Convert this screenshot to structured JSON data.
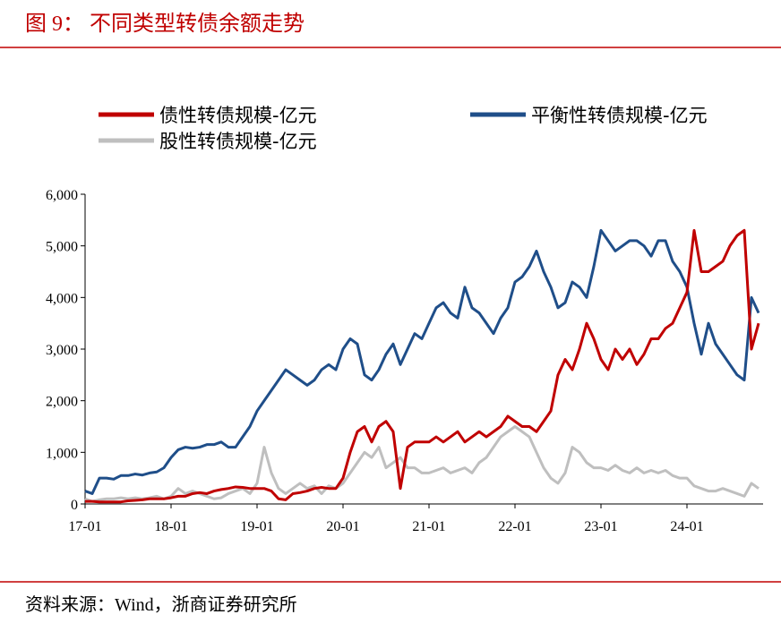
{
  "header": {
    "title": "图 9：   不同类型转债余额走势"
  },
  "chart_data": {
    "type": "line",
    "x": [
      "17-01",
      "17-02",
      "17-03",
      "17-04",
      "17-05",
      "17-06",
      "17-07",
      "17-08",
      "17-09",
      "17-10",
      "17-11",
      "17-12",
      "18-01",
      "18-02",
      "18-03",
      "18-04",
      "18-05",
      "18-06",
      "18-07",
      "18-08",
      "18-09",
      "18-10",
      "18-11",
      "18-12",
      "19-01",
      "19-02",
      "19-03",
      "19-04",
      "19-05",
      "19-06",
      "19-07",
      "19-08",
      "19-09",
      "19-10",
      "19-11",
      "19-12",
      "20-01",
      "20-02",
      "20-03",
      "20-04",
      "20-05",
      "20-06",
      "20-07",
      "20-08",
      "20-09",
      "20-10",
      "20-11",
      "20-12",
      "21-01",
      "21-02",
      "21-03",
      "21-04",
      "21-05",
      "21-06",
      "21-07",
      "21-08",
      "21-09",
      "21-10",
      "21-11",
      "21-12",
      "22-01",
      "22-02",
      "22-03",
      "22-04",
      "22-05",
      "22-06",
      "22-07",
      "22-08",
      "22-09",
      "22-10",
      "22-11",
      "22-12",
      "23-01",
      "23-02",
      "23-03",
      "23-04",
      "23-05",
      "23-06",
      "23-07",
      "23-08",
      "23-09",
      "23-10",
      "23-11",
      "23-12",
      "24-01",
      "24-02",
      "24-03",
      "24-04",
      "24-05",
      "24-06",
      "24-07",
      "24-08",
      "24-09",
      "24-10",
      "24-11"
    ],
    "xticks": [
      "17-01",
      "18-01",
      "19-01",
      "20-01",
      "21-01",
      "22-01",
      "23-01",
      "24-01"
    ],
    "series": [
      {
        "name": "债性转债规模-亿元",
        "color": "#c00000",
        "values": [
          50,
          50,
          40,
          40,
          40,
          40,
          60,
          70,
          80,
          100,
          100,
          100,
          120,
          150,
          150,
          200,
          220,
          200,
          250,
          280,
          300,
          330,
          320,
          300,
          300,
          300,
          250,
          100,
          80,
          200,
          220,
          250,
          300,
          320,
          300,
          300,
          500,
          1000,
          1400,
          1500,
          1200,
          1500,
          1600,
          1400,
          300,
          1100,
          1200,
          1200,
          1200,
          1300,
          1200,
          1300,
          1400,
          1200,
          1300,
          1400,
          1300,
          1400,
          1500,
          1700,
          1600,
          1500,
          1500,
          1400,
          1600,
          1800,
          2500,
          2800,
          2600,
          3000,
          3500,
          3200,
          2800,
          2600,
          3000,
          2800,
          3000,
          2700,
          2900,
          3200,
          3200,
          3400,
          3500,
          3800,
          4100,
          5300,
          4500,
          4500,
          4600,
          4700,
          5000,
          5200,
          5300,
          3000,
          3500
        ]
      },
      {
        "name": "平衡性转债规模-亿元",
        "color": "#1f4e89",
        "values": [
          250,
          200,
          500,
          500,
          480,
          550,
          550,
          580,
          560,
          600,
          620,
          700,
          900,
          1050,
          1100,
          1080,
          1100,
          1150,
          1150,
          1200,
          1100,
          1100,
          1300,
          1500,
          1800,
          2000,
          2200,
          2400,
          2600,
          2500,
          2400,
          2300,
          2400,
          2600,
          2700,
          2600,
          3000,
          3200,
          3100,
          2500,
          2400,
          2600,
          2900,
          3100,
          2700,
          3000,
          3300,
          3200,
          3500,
          3800,
          3900,
          3700,
          3600,
          4200,
          3800,
          3700,
          3500,
          3300,
          3600,
          3800,
          4300,
          4400,
          4600,
          4900,
          4500,
          4200,
          3800,
          3900,
          4300,
          4200,
          4000,
          4600,
          5300,
          5100,
          4900,
          5000,
          5100,
          5100,
          5000,
          4800,
          5100,
          5100,
          4700,
          4500,
          4200,
          3500,
          2900,
          3500,
          3100,
          2900,
          2700,
          2500,
          2400,
          4000,
          3700
        ]
      },
      {
        "name": "股性转债规模-亿元",
        "color": "#bfbfbf",
        "values": [
          100,
          50,
          80,
          100,
          100,
          120,
          100,
          120,
          100,
          120,
          150,
          100,
          150,
          300,
          200,
          250,
          200,
          150,
          100,
          120,
          200,
          250,
          300,
          200,
          400,
          1100,
          600,
          300,
          200,
          300,
          400,
          300,
          350,
          200,
          350,
          300,
          400,
          600,
          800,
          1000,
          900,
          1100,
          700,
          800,
          900,
          700,
          700,
          600,
          600,
          650,
          700,
          600,
          650,
          700,
          600,
          800,
          900,
          1100,
          1300,
          1400,
          1500,
          1400,
          1300,
          1000,
          700,
          500,
          400,
          600,
          1100,
          1000,
          800,
          700,
          700,
          650,
          750,
          650,
          600,
          700,
          600,
          650,
          600,
          650,
          550,
          500,
          500,
          350,
          300,
          250,
          250,
          300,
          250,
          200,
          150,
          400,
          300
        ]
      }
    ],
    "ylim": [
      0,
      6000
    ],
    "yticks": [
      0,
      {
        "value": 1000,
        "label": "1,000"
      },
      {
        "value": 2000,
        "label": "2,000"
      },
      {
        "value": 3000,
        "label": "3,000"
      },
      {
        "value": 4000,
        "label": "4,000"
      },
      {
        "value": 5000,
        "label": "5,000"
      },
      {
        "value": 6000,
        "label": "6,000"
      }
    ],
    "legend": "top"
  },
  "footer": {
    "source": "资料来源：Wind，浙商证券研究所"
  }
}
